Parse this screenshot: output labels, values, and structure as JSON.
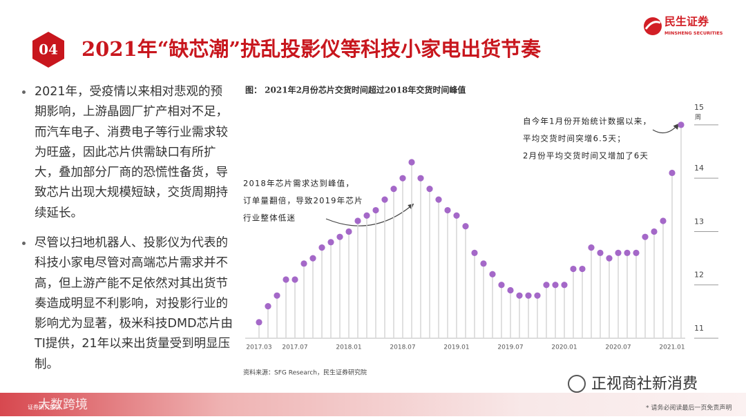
{
  "header": {
    "badge": "04",
    "title": "2021年“缺芯潮”扰乱投影仪等科技小家电出货节奏",
    "logo_cn": "民生证券",
    "logo_en": "MINSHENG SECURITIES"
  },
  "bullets": [
    "2021年，受疫情以来相对悲观的预期影响，上游晶圆厂扩产相对不足，而汽车电子、消费电子等行业需求较为旺盛，因此芯片供需缺口有所扩大，叠加部分厂商的恐慌性备货，导致芯片出现大规模短缺，交货周期持续延长。",
    "尽管以扫地机器人、投影仪为代表的科技小家电尽管对高端芯片需求并不高，但上游产能不足依然对其出货节奏造成明显不利影响，对投影行业的影响尤为显著，极米科技DMD芯片由TI提供，21年以来出货量受到明显压制。"
  ],
  "chart_data": {
    "type": "lollipop",
    "title": "图：  2021年2月份芯片交货时间超过2018年交货时间峰值",
    "categories": [
      "2017.03",
      null,
      null,
      null,
      "2017.07",
      null,
      null,
      null,
      null,
      null,
      "2018.01",
      null,
      null,
      null,
      null,
      null,
      "2018.07",
      null,
      null,
      null,
      null,
      null,
      "2019.01",
      null,
      null,
      null,
      null,
      null,
      "2019.07",
      null,
      null,
      null,
      null,
      null,
      "2020.01",
      null,
      null,
      null,
      null,
      null,
      "2020.07",
      null,
      null,
      null,
      null,
      null,
      "2021.01",
      null
    ],
    "values": [
      11.3,
      11.6,
      11.8,
      12.1,
      12.1,
      12.4,
      12.5,
      12.7,
      12.8,
      12.9,
      13.0,
      13.2,
      13.3,
      13.4,
      13.6,
      13.8,
      14.0,
      14.3,
      14.0,
      13.8,
      13.6,
      13.4,
      13.3,
      13.1,
      12.6,
      12.4,
      12.2,
      12.0,
      11.9,
      11.8,
      11.8,
      11.8,
      12.0,
      12.0,
      12.0,
      12.3,
      12.3,
      12.7,
      12.6,
      12.5,
      12.6,
      12.6,
      12.6,
      12.9,
      13.0,
      13.2,
      14.1,
      15.0
    ],
    "color": "#a468c8",
    "ylim": [
      11,
      15.4
    ],
    "yticks": [
      11,
      12,
      13,
      14,
      15
    ],
    "y_unit": "周",
    "annotations": [
      [
        "2018年芯片需求达到峰值，",
        "订单量翻倍，导致2019年芯片",
        "行业整体低迷"
      ],
      [
        "自今年1月份开始统计数据以来，",
        "平均交货时间突增6.5天；",
        "2月份平均交货时间又增加了6天"
      ]
    ],
    "source": "资料来源：SFG Research，民生证券研究院"
  },
  "footer": {
    "watermark": "正视商社新消费",
    "disclaimer": "* 请务必阅读最后一页免责声明",
    "report_tag": "证券研究报告",
    "overlay": "大数跨境"
  }
}
